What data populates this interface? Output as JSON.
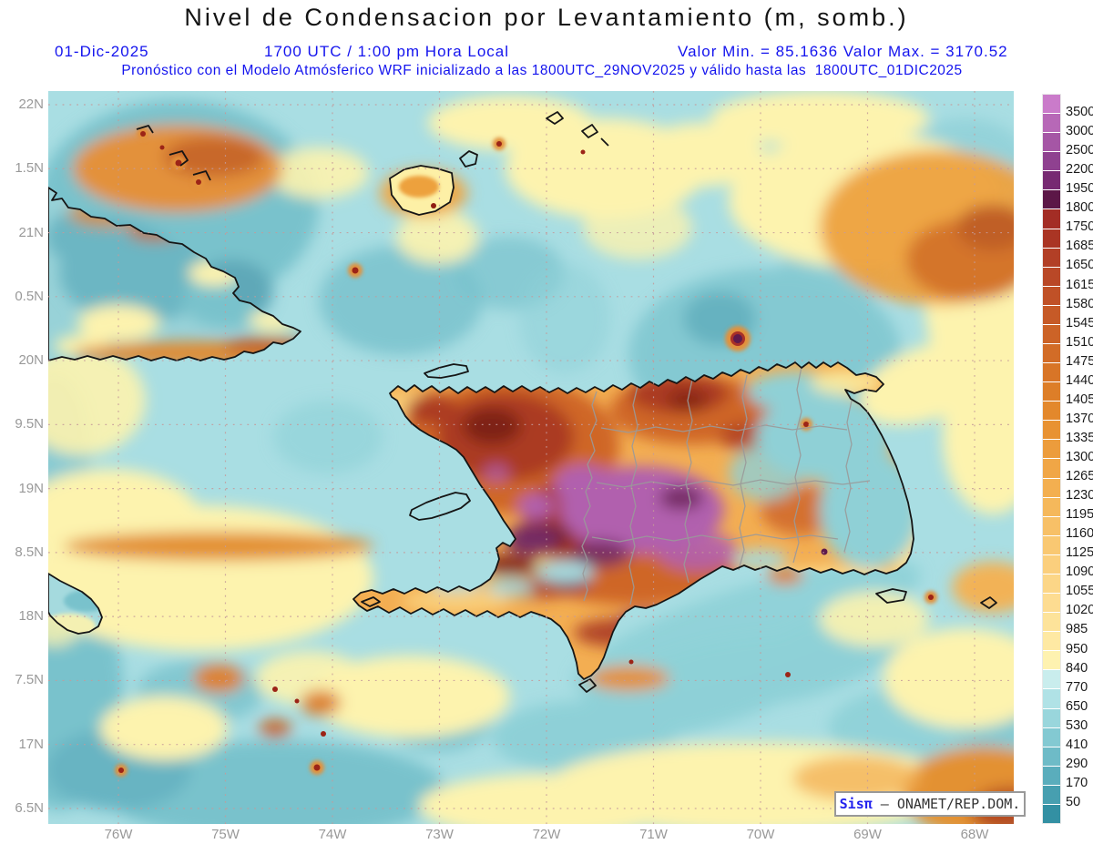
{
  "header": {
    "title": "Nivel de Condensacion por Levantamiento (m, somb.)",
    "date": "01-Dic-2025",
    "time": "1700 UTC / 1:00 pm Hora Local",
    "valor": "Valor Min. = 85.1636  Valor Max. = 3170.52",
    "model_line": "Pronóstico con el Modelo Atmósferico WRF inicializado a las 1800UTC_29NOV2025 y válido hasta las  1800UTC_01DIC2025"
  },
  "map": {
    "x_axis": {
      "ticks": [
        "76W",
        "75W",
        "74W",
        "73W",
        "72W",
        "71W",
        "70W",
        "69W",
        "68W"
      ]
    },
    "y_axis": {
      "ticks": [
        "22N",
        "1.5N",
        "21N",
        "0.5N",
        "20N",
        "9.5N",
        "19N",
        "8.5N",
        "18N",
        "7.5N",
        "17N",
        "6.5N"
      ]
    },
    "attribution": {
      "brand": "Sisπ",
      "rest": " – ONAMET/REP.DOM."
    }
  },
  "colorbar": {
    "labels": [
      "3500",
      "3000",
      "2500",
      "2200",
      "1950",
      "1800",
      "1750",
      "1685",
      "1650",
      "1615",
      "1580",
      "1545",
      "1510",
      "1475",
      "1440",
      "1405",
      "1370",
      "1335",
      "1300",
      "1265",
      "1230",
      "1195",
      "1160",
      "1125",
      "1090",
      "1055",
      "1020",
      "985",
      "950",
      "840",
      "770",
      "650",
      "530",
      "410",
      "290",
      "170",
      "50"
    ],
    "colors": [
      "#ca7bca",
      "#b768b7",
      "#a556a5",
      "#8f4190",
      "#772a72",
      "#5c1747",
      "#a32d25",
      "#aa3524",
      "#b23f26",
      "#b94827",
      "#c05127",
      "#c65a27",
      "#cc6327",
      "#d26c27",
      "#d87527",
      "#dd7e28",
      "#e3882c",
      "#e89232",
      "#ec9c3c",
      "#f0a646",
      "#f3af50",
      "#f5b85b",
      "#f7c067",
      "#f9c872",
      "#fbcf7d",
      "#fcd687",
      "#fddc91",
      "#fde39a",
      "#fee9a3",
      "#fef2b0",
      "#c9eded",
      "#b0e2e6",
      "#99d6dc",
      "#83c9d2",
      "#6ebbc7",
      "#5aadbc",
      "#479fb0",
      "#3390a3"
    ]
  },
  "chart_data": {
    "type": "heatmap",
    "title": "Nivel de Condensacion por Levantamiento (m, somb.)",
    "units": "m",
    "valid_date": "01-Dic-2025",
    "valid_time": "1700 UTC / 1:00 pm Hora Local",
    "value_min": 85.1636,
    "value_max": 3170.52,
    "model": "WRF",
    "initialized": "1800UTC_29NOV2025",
    "valid_until": "1800UTC_01DIC2025",
    "x_tick_labels": [
      "76W",
      "75W",
      "74W",
      "73W",
      "72W",
      "71W",
      "70W",
      "69W",
      "68W"
    ],
    "y_tick_labels": [
      "22N",
      "1.5N",
      "21N",
      "0.5N",
      "20N",
      "9.5N",
      "19N",
      "8.5N",
      "18N",
      "7.5N",
      "17N",
      "6.5N"
    ],
    "colorbar_levels": [
      50,
      170,
      290,
      410,
      530,
      650,
      770,
      840,
      950,
      985,
      1020,
      1055,
      1090,
      1125,
      1160,
      1195,
      1230,
      1265,
      1300,
      1335,
      1370,
      1405,
      1440,
      1475,
      1510,
      1545,
      1580,
      1615,
      1650,
      1685,
      1750,
      1800,
      1950,
      2200,
      2500,
      3000,
      3500
    ],
    "legend_position": "right",
    "grid": "dotted"
  }
}
